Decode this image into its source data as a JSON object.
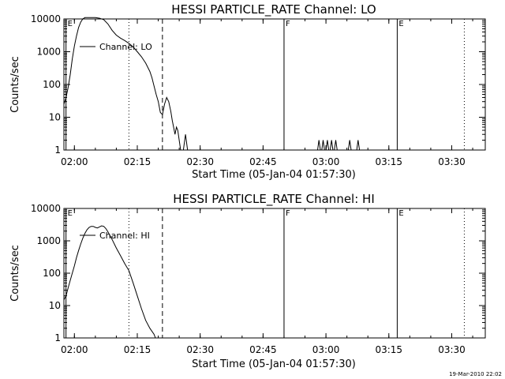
{
  "footer": {
    "timestamp": "19-Mar-2010 22:02"
  },
  "chart_data": [
    {
      "type": "line",
      "title": "HESSI PARTICLE_RATE Channel: LO",
      "xlabel": "Start Time (05-Jan-04 01:57:30)",
      "ylabel": "Counts/sec",
      "xlim": [
        "01:57:30",
        "03:38:00"
      ],
      "ylim": [
        1,
        10000
      ],
      "yscale": "log",
      "xticks": [
        "02:00",
        "02:15",
        "02:30",
        "02:45",
        "03:00",
        "03:15",
        "03:30"
      ],
      "yticks": [
        "1",
        "10",
        "100",
        "1000",
        "10000"
      ],
      "legend": {
        "entries": [
          "Channel: LO"
        ],
        "placement": "top-left"
      },
      "grid": false,
      "markers": [
        {
          "time": "01:58:00",
          "style": "solid",
          "label": "E"
        },
        {
          "time": "02:13:00",
          "style": "dotted",
          "label": ""
        },
        {
          "time": "02:21:00",
          "style": "dashed",
          "label": ""
        },
        {
          "time": "02:50:00",
          "style": "solid",
          "label": "F"
        },
        {
          "time": "03:17:00",
          "style": "solid",
          "label": "E"
        },
        {
          "time": "03:33:00",
          "style": "dotted",
          "label": ""
        }
      ],
      "series": [
        {
          "name": "Channel: LO",
          "segments": [
            {
              "x": [
                "01:57:30",
                "01:58:00",
                "01:58:30",
                "01:59:00",
                "01:59:30",
                "02:00:00",
                "02:00:30",
                "02:01:00",
                "02:01:30",
                "02:02:00",
                "02:02:30",
                "02:03:00",
                "02:04:00",
                "02:05:00",
                "02:06:00",
                "02:07:00",
                "02:08:00",
                "02:09:00",
                "02:10:00",
                "02:11:00",
                "02:12:00",
                "02:13:00",
                "02:14:00",
                "02:15:00",
                "02:16:00",
                "02:17:00",
                "02:18:00",
                "02:18:30",
                "02:19:00",
                "02:19:30",
                "02:20:00",
                "02:20:30",
                "02:21:00",
                "02:21:30",
                "02:22:00",
                "02:22:30",
                "02:23:00",
                "02:23:20",
                "02:23:40",
                "02:24:00",
                "02:24:20",
                "02:24:40",
                "02:25:00",
                "02:25:20",
                "02:25:40",
                "02:26:00",
                "02:26:30",
                "02:27:00"
              ],
              "y": [
                25,
                40,
                80,
                200,
                600,
                1500,
                3000,
                5500,
                8000,
                10000,
                11000,
                11000,
                11000,
                11000,
                10500,
                9500,
                7000,
                4500,
                3200,
                2600,
                2200,
                1800,
                1400,
                1000,
                700,
                450,
                250,
                160,
                90,
                50,
                30,
                14,
                12,
                25,
                40,
                30,
                15,
                8,
                5,
                3,
                5,
                4,
                2,
                1,
                1,
                1,
                3,
                1
              ]
            },
            {
              "x": [
                "02:58:00",
                "02:58:20",
                "02:58:40",
                "02:59:00",
                "02:59:20",
                "02:59:40",
                "03:00:00",
                "03:00:20",
                "03:00:40",
                "03:01:00",
                "03:01:20",
                "03:01:40",
                "03:02:00",
                "03:02:20",
                "03:02:40",
                "03:03:00",
                "03:03:20",
                "03:03:40",
                "03:04:00",
                "03:04:20",
                "03:04:40",
                "03:05:00",
                "03:05:20",
                "03:05:40",
                "03:06:00",
                "03:06:20",
                "03:06:40",
                "03:07:00",
                "03:07:20",
                "03:07:40",
                "03:08:00",
                "03:08:20",
                "03:08:40"
              ],
              "y": [
                1,
                2,
                1,
                1,
                2,
                1,
                1,
                2,
                1,
                1,
                2,
                1,
                1,
                2,
                1,
                1,
                1,
                1,
                1,
                1,
                1,
                1,
                1,
                2,
                1,
                1,
                1,
                1,
                1,
                2,
                1,
                1,
                1
              ]
            }
          ]
        }
      ]
    },
    {
      "type": "line",
      "title": "HESSI PARTICLE_RATE Channel: HI",
      "xlabel": "Start Time (05-Jan-04 01:57:30)",
      "ylabel": "Counts/sec",
      "xlim": [
        "01:57:30",
        "03:38:00"
      ],
      "ylim": [
        1,
        10000
      ],
      "yscale": "log",
      "xticks": [
        "02:00",
        "02:15",
        "02:30",
        "02:45",
        "03:00",
        "03:15",
        "03:30"
      ],
      "yticks": [
        "1",
        "10",
        "100",
        "1000",
        "10000"
      ],
      "legend": {
        "entries": [
          "Channel: HI"
        ],
        "placement": "top-left"
      },
      "grid": false,
      "markers": [
        {
          "time": "01:58:00",
          "style": "solid",
          "label": "E"
        },
        {
          "time": "02:13:00",
          "style": "dotted",
          "label": ""
        },
        {
          "time": "02:21:00",
          "style": "dashed",
          "label": ""
        },
        {
          "time": "02:50:00",
          "style": "solid",
          "label": "F"
        },
        {
          "time": "03:17:00",
          "style": "solid",
          "label": "E"
        },
        {
          "time": "03:33:00",
          "style": "dotted",
          "label": ""
        }
      ],
      "series": [
        {
          "name": "Channel: HI",
          "segments": [
            {
              "x": [
                "01:57:30",
                "01:58:00",
                "01:58:30",
                "01:59:00",
                "01:59:30",
                "02:00:00",
                "02:00:30",
                "02:01:00",
                "02:01:30",
                "02:02:00",
                "02:02:30",
                "02:03:00",
                "02:03:30",
                "02:04:00",
                "02:04:30",
                "02:05:00",
                "02:05:30",
                "02:06:00",
                "02:06:30",
                "02:07:00",
                "02:07:30",
                "02:08:00",
                "02:09:00",
                "02:10:00",
                "02:11:00",
                "02:12:00",
                "02:13:00",
                "02:14:00",
                "02:15:00",
                "02:16:00",
                "02:17:00",
                "02:18:00",
                "02:19:00",
                "02:19:20"
              ],
              "y": [
                15,
                20,
                35,
                60,
                100,
                170,
                300,
                500,
                800,
                1200,
                1700,
                2200,
                2600,
                2800,
                2800,
                2600,
                2500,
                2700,
                2900,
                2800,
                2400,
                1900,
                1100,
                600,
                350,
                200,
                120,
                50,
                20,
                8,
                3.5,
                2,
                1.3,
                1
              ]
            }
          ]
        }
      ]
    }
  ]
}
